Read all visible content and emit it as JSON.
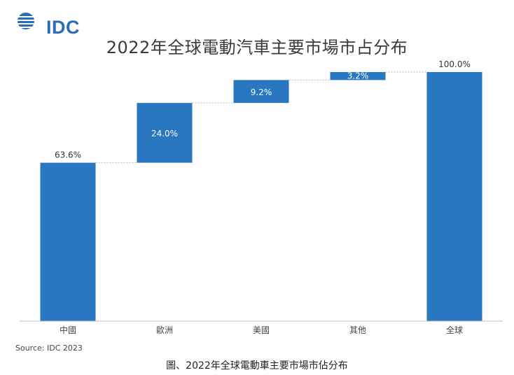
{
  "header": {
    "logo_text": "IDC",
    "title": "2022年全球電動汽車主要市場市占分布"
  },
  "chart_data": {
    "type": "bar",
    "subtype": "waterfall",
    "categories": [
      "中國",
      "歐洲",
      "美國",
      "其他",
      "全球"
    ],
    "values": [
      63.6,
      24.0,
      9.2,
      3.2,
      100.0
    ],
    "data_labels": [
      "63.6%",
      "24.0%",
      "9.2%",
      "3.2%",
      "100.0%"
    ],
    "is_total": [
      false,
      false,
      false,
      false,
      true
    ],
    "ylim": [
      0,
      100
    ],
    "title": "2022年全球電動汽車主要市場市占分布",
    "xlabel": "",
    "ylabel": "",
    "grid": false,
    "legend": "none",
    "bar_color": "#2877c0"
  },
  "footer": {
    "source": "Source: IDC 2023",
    "caption": "圖、2022年全球電動車主要市場市佔分布"
  }
}
